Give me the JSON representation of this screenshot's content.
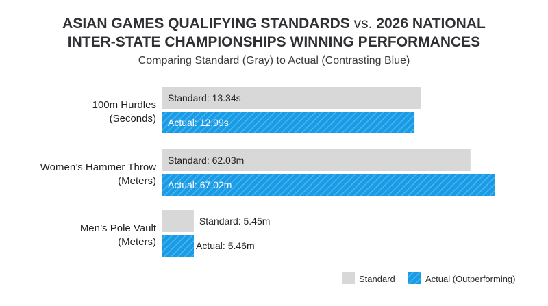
{
  "chart_data": {
    "type": "bar",
    "orientation": "horizontal",
    "title_line1": "ASIAN GAMES QUALIFYING STANDARDS",
    "title_vs": "vs.",
    "title_line1_end": "2026 NATIONAL",
    "title_line2": "INTER-STATE CHAMPIONSHIPS WINNING PERFORMANCES",
    "subtitle": "Comparing Standard (Gray) to Actual (Contrasting Blue)",
    "categories": [
      {
        "line1": "100m Hurdles",
        "line2": "(Seconds)"
      },
      {
        "line1": "Women’s Hammer Throw",
        "line2": "(Meters)"
      },
      {
        "line1": "Men’s Pole Vault",
        "line2": "(Meters)"
      }
    ],
    "series": [
      {
        "name": "Standard",
        "color": "#d8d8d8",
        "values": [
          13.34,
          62.03,
          5.45
        ],
        "labels": [
          "Standard: 13.34s",
          "Standard: 62.03m",
          "Standard: 5.45m"
        ]
      },
      {
        "name": "Actual (Outperforming)",
        "color": "#1a9be6",
        "values": [
          12.99,
          67.02,
          5.46
        ],
        "labels": [
          "Actual: 12.99s",
          "Actual: 67.02m",
          "Actual: 5.46m"
        ]
      }
    ],
    "legend": {
      "position": "bottom-right",
      "items": [
        "Standard",
        "Actual (Outperforming)"
      ]
    }
  }
}
